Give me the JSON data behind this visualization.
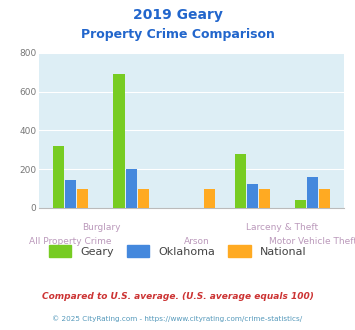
{
  "title_line1": "2019 Geary",
  "title_line2": "Property Crime Comparison",
  "categories": [
    "All Property Crime",
    "Burglary",
    "Arson",
    "Larceny & Theft",
    "Motor Vehicle Theft"
  ],
  "group_centers": [
    1.0,
    2.1,
    3.3,
    4.3,
    5.4
  ],
  "series": {
    "Geary": [
      320,
      690,
      0,
      280,
      40
    ],
    "Oklahoma": [
      145,
      200,
      0,
      125,
      160
    ],
    "National": [
      100,
      100,
      100,
      100,
      100
    ]
  },
  "colors": {
    "Geary": "#77cc22",
    "Oklahoma": "#4488dd",
    "National": "#ffaa22"
  },
  "bar_width": 0.22,
  "ylim": [
    0,
    800
  ],
  "yticks": [
    0,
    200,
    400,
    600,
    800
  ],
  "bg_color": "#ddeef5",
  "grid_color": "#ffffff",
  "title_color": "#2266cc",
  "cat_label_color": "#bb99bb",
  "legend_label_color": "#444444",
  "footnote1": "Compared to U.S. average. (U.S. average equals 100)",
  "footnote2": "© 2025 CityRating.com - https://www.cityrating.com/crime-statistics/",
  "footnote1_color": "#cc3333",
  "footnote2_color": "#5599bb",
  "upper_labels": [
    [
      "Burglary",
      1.55
    ],
    [
      "Larceny & Theft",
      4.85
    ]
  ],
  "lower_labels": [
    [
      "All Property Crime",
      1.0
    ],
    [
      "Arson",
      3.3
    ],
    [
      "Motor Vehicle Theft",
      5.4
    ]
  ]
}
